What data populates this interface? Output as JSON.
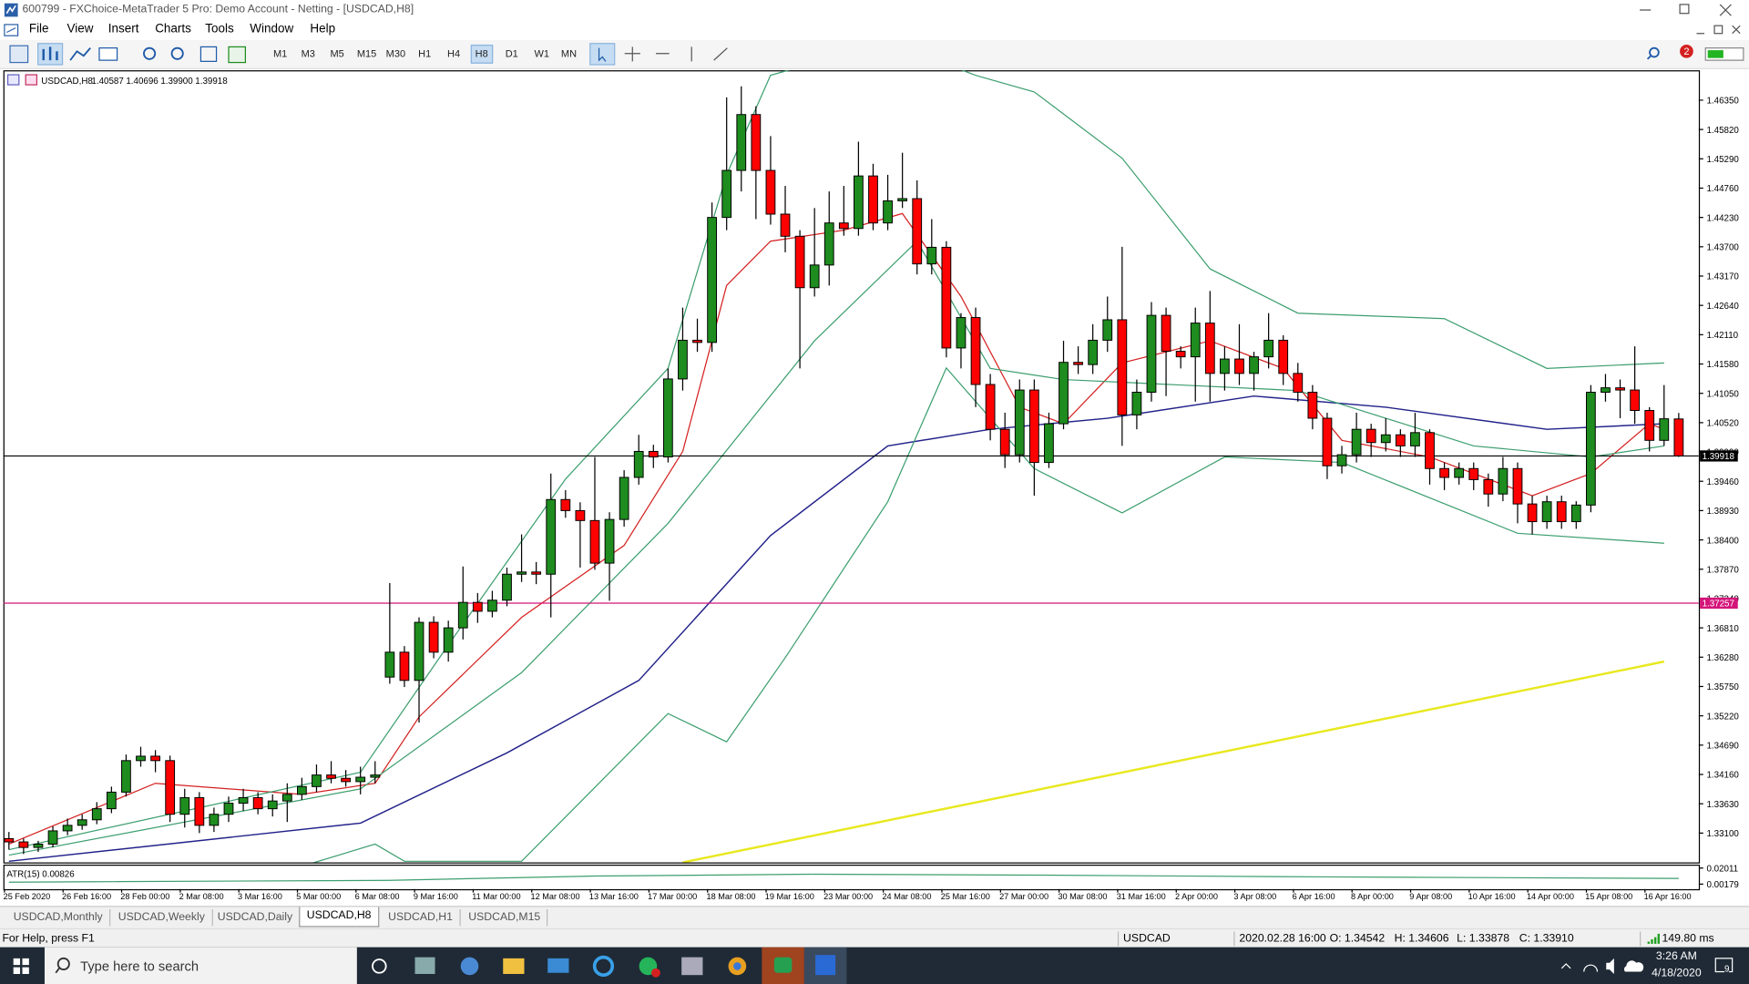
{
  "window": {
    "title": "600799 - FXChoice-MetaTrader 5 Pro: Demo Account - Netting - [USDCAD,H8]"
  },
  "menu": [
    "File",
    "View",
    "Insert",
    "Charts",
    "Tools",
    "Window",
    "Help"
  ],
  "timeframes": [
    "M1",
    "M3",
    "M5",
    "M15",
    "M30",
    "H1",
    "H4",
    "H8",
    "D1",
    "W1",
    "MN"
  ],
  "active_timeframe": "H8",
  "notification_badge": "2",
  "chart_header": {
    "symbol": "USDCAD,H8",
    "ohlc": [
      "1.40587",
      "1.40696",
      "1.39900",
      "1.39918"
    ]
  },
  "chart_data": {
    "type": "candlestick",
    "up_color": "#1e8c1e",
    "down_color": "#ff0000",
    "ylim": [
      1.3259,
      1.4685
    ],
    "yticks": [
      {
        "value": 1.4635,
        "label": "1.46350"
      },
      {
        "value": 1.4582,
        "label": "1.45820"
      },
      {
        "value": 1.4529,
        "label": "1.45290"
      },
      {
        "value": 1.4476,
        "label": "1.44760"
      },
      {
        "value": 1.4423,
        "label": "1.44230"
      },
      {
        "value": 1.437,
        "label": "1.43700"
      },
      {
        "value": 1.4317,
        "label": "1.43170"
      },
      {
        "value": 1.4264,
        "label": "1.42640"
      },
      {
        "value": 1.4211,
        "label": "1.42110"
      },
      {
        "value": 1.4158,
        "label": "1.41580"
      },
      {
        "value": 1.4105,
        "label": "1.41050"
      },
      {
        "value": 1.4052,
        "label": "1.40520"
      },
      {
        "value": 1.3999,
        "label": "1.39990"
      },
      {
        "value": 1.3946,
        "label": "1.39460"
      },
      {
        "value": 1.3893,
        "label": "1.38930"
      },
      {
        "value": 1.384,
        "label": "1.38400"
      },
      {
        "value": 1.3787,
        "label": "1.37870"
      },
      {
        "value": 1.3734,
        "label": "1.37340"
      },
      {
        "value": 1.3681,
        "label": "1.36810"
      },
      {
        "value": 1.3628,
        "label": "1.36280"
      },
      {
        "value": 1.3575,
        "label": "1.35750"
      },
      {
        "value": 1.3522,
        "label": "1.35220"
      },
      {
        "value": 1.3469,
        "label": "1.34690"
      },
      {
        "value": 1.3416,
        "label": "1.34160"
      },
      {
        "value": 1.3363,
        "label": "1.33630"
      },
      {
        "value": 1.331,
        "label": "1.33100"
      }
    ],
    "price_lines": [
      {
        "value": 1.39918,
        "label": "1.39918",
        "color": "#000000"
      },
      {
        "value": 1.37257,
        "label": "1.37257",
        "color": "#d4147a"
      }
    ],
    "candles": [
      [
        1.33,
        1.3312,
        1.328,
        1.3294
      ],
      [
        1.3294,
        1.33,
        1.3272,
        1.3284
      ],
      [
        1.3284,
        1.3296,
        1.3276,
        1.329
      ],
      [
        1.329,
        1.3322,
        1.3284,
        1.3314
      ],
      [
        1.3314,
        1.3336,
        1.3306,
        1.3324
      ],
      [
        1.3324,
        1.3344,
        1.3316,
        1.3334
      ],
      [
        1.3334,
        1.3366,
        1.3326,
        1.3354
      ],
      [
        1.3354,
        1.3394,
        1.3346,
        1.3384
      ],
      [
        1.3384,
        1.3452,
        1.3376,
        1.3441
      ],
      [
        1.3441,
        1.3466,
        1.343,
        1.3449
      ],
      [
        1.3449,
        1.346,
        1.342,
        1.3441
      ],
      [
        1.3441,
        1.345,
        1.333,
        1.3344
      ],
      [
        1.3344,
        1.339,
        1.332,
        1.3374
      ],
      [
        1.3374,
        1.3384,
        1.331,
        1.3324
      ],
      [
        1.3324,
        1.3356,
        1.3312,
        1.3344
      ],
      [
        1.3344,
        1.3376,
        1.333,
        1.3364
      ],
      [
        1.3364,
        1.339,
        1.335,
        1.3374
      ],
      [
        1.3374,
        1.3384,
        1.3344,
        1.3354
      ],
      [
        1.3354,
        1.338,
        1.334,
        1.3368
      ],
      [
        1.3368,
        1.34,
        1.333,
        1.338
      ],
      [
        1.338,
        1.341,
        1.337,
        1.3394
      ],
      [
        1.3394,
        1.3434,
        1.3384,
        1.3415
      ],
      [
        1.3415,
        1.344,
        1.34,
        1.3409
      ],
      [
        1.3409,
        1.3424,
        1.3394,
        1.3403
      ],
      [
        1.3403,
        1.343,
        1.338,
        1.3411
      ],
      [
        1.3411,
        1.344,
        1.34,
        1.3415
      ],
      [
        1.3592,
        1.3762,
        1.358,
        1.3637
      ],
      [
        1.3637,
        1.3648,
        1.3574,
        1.3586
      ],
      [
        1.3586,
        1.37,
        1.351,
        1.3691
      ],
      [
        1.3691,
        1.3702,
        1.3626,
        1.3637
      ],
      [
        1.3637,
        1.3694,
        1.362,
        1.3681
      ],
      [
        1.3681,
        1.3792,
        1.366,
        1.3727
      ],
      [
        1.3727,
        1.3744,
        1.369,
        1.3711
      ],
      [
        1.3711,
        1.3748,
        1.37,
        1.3731
      ],
      [
        1.3731,
        1.379,
        1.372,
        1.3778
      ],
      [
        1.3778,
        1.385,
        1.3764,
        1.3782
      ],
      [
        1.3782,
        1.38,
        1.376,
        1.3778
      ],
      [
        1.3778,
        1.396,
        1.37,
        1.3913
      ],
      [
        1.3913,
        1.393,
        1.388,
        1.3893
      ],
      [
        1.3893,
        1.3908,
        1.379,
        1.3875
      ],
      [
        1.3875,
        1.399,
        1.3786,
        1.3798
      ],
      [
        1.3798,
        1.389,
        1.373,
        1.3877
      ],
      [
        1.3877,
        1.3966,
        1.3864,
        1.3953
      ],
      [
        1.3953,
        1.403,
        1.394,
        1.4
      ],
      [
        1.4,
        1.4012,
        1.397,
        1.399
      ],
      [
        1.399,
        1.415,
        1.398,
        1.4131
      ],
      [
        1.4131,
        1.426,
        1.411,
        1.4201
      ],
      [
        1.4201,
        1.424,
        1.418,
        1.4197
      ],
      [
        1.4197,
        1.445,
        1.418,
        1.4423
      ],
      [
        1.4423,
        1.464,
        1.44,
        1.4508
      ],
      [
        1.4508,
        1.466,
        1.447,
        1.4609
      ],
      [
        1.4609,
        1.4624,
        1.442,
        1.4508
      ],
      [
        1.4508,
        1.457,
        1.441,
        1.4429
      ],
      [
        1.4429,
        1.448,
        1.436,
        1.4389
      ],
      [
        1.4389,
        1.44,
        1.415,
        1.4296
      ],
      [
        1.4296,
        1.444,
        1.428,
        1.4337
      ],
      [
        1.4337,
        1.447,
        1.43,
        1.4413
      ],
      [
        1.4413,
        1.448,
        1.439,
        1.4403
      ],
      [
        1.4403,
        1.456,
        1.439,
        1.4498
      ],
      [
        1.4498,
        1.452,
        1.44,
        1.4413
      ],
      [
        1.4413,
        1.45,
        1.44,
        1.4453
      ],
      [
        1.4453,
        1.454,
        1.444,
        1.4457
      ],
      [
        1.4457,
        1.449,
        1.432,
        1.4339
      ],
      [
        1.4339,
        1.442,
        1.432,
        1.4369
      ],
      [
        1.4369,
        1.438,
        1.417,
        1.4187
      ],
      [
        1.4187,
        1.425,
        1.415,
        1.4242
      ],
      [
        1.4242,
        1.426,
        1.408,
        1.4121
      ],
      [
        1.4121,
        1.414,
        1.402,
        1.404
      ],
      [
        1.404,
        1.407,
        1.397,
        1.3994
      ],
      [
        1.3994,
        1.413,
        1.398,
        1.4111
      ],
      [
        1.4111,
        1.413,
        1.392,
        1.398
      ],
      [
        1.398,
        1.407,
        1.397,
        1.405
      ],
      [
        1.405,
        1.42,
        1.404,
        1.4161
      ],
      [
        1.4161,
        1.419,
        1.414,
        1.4157
      ],
      [
        1.4157,
        1.423,
        1.414,
        1.4201
      ],
      [
        1.4201,
        1.428,
        1.418,
        1.4238
      ],
      [
        1.4238,
        1.437,
        1.401,
        1.4066
      ],
      [
        1.4066,
        1.413,
        1.404,
        1.4107
      ],
      [
        1.4107,
        1.427,
        1.409,
        1.4246
      ],
      [
        1.4246,
        1.426,
        1.41,
        1.4181
      ],
      [
        1.4181,
        1.419,
        1.415,
        1.4171
      ],
      [
        1.4171,
        1.426,
        1.409,
        1.4232
      ],
      [
        1.4232,
        1.429,
        1.409,
        1.4141
      ],
      [
        1.4141,
        1.419,
        1.411,
        1.4167
      ],
      [
        1.4167,
        1.423,
        1.412,
        1.4141
      ],
      [
        1.4141,
        1.418,
        1.411,
        1.4171
      ],
      [
        1.4171,
        1.425,
        1.415,
        1.4201
      ],
      [
        1.4201,
        1.421,
        1.412,
        1.4141
      ],
      [
        1.4141,
        1.416,
        1.409,
        1.4107
      ],
      [
        1.4107,
        1.412,
        1.404,
        1.406
      ],
      [
        1.406,
        1.407,
        1.395,
        1.3974
      ],
      [
        1.3974,
        1.401,
        1.396,
        1.3994
      ],
      [
        1.3994,
        1.407,
        1.398,
        1.404
      ],
      [
        1.404,
        1.405,
        1.399,
        1.4016
      ],
      [
        1.4016,
        1.406,
        1.4,
        1.403
      ],
      [
        1.403,
        1.404,
        1.399,
        1.401
      ],
      [
        1.401,
        1.407,
        1.399,
        1.4034
      ],
      [
        1.4034,
        1.404,
        1.394,
        1.3969
      ],
      [
        1.3969,
        1.398,
        1.393,
        1.3953
      ],
      [
        1.3953,
        1.398,
        1.394,
        1.3969
      ],
      [
        1.3969,
        1.398,
        1.393,
        1.3949
      ],
      [
        1.3949,
        1.396,
        1.39,
        1.3923
      ],
      [
        1.3923,
        1.399,
        1.391,
        1.3969
      ],
      [
        1.3969,
        1.398,
        1.387,
        1.3905
      ],
      [
        1.3905,
        1.392,
        1.385,
        1.3873
      ],
      [
        1.3873,
        1.392,
        1.386,
        1.3909
      ],
      [
        1.3909,
        1.392,
        1.386,
        1.3873
      ],
      [
        1.3873,
        1.391,
        1.386,
        1.3903
      ],
      [
        1.3903,
        1.412,
        1.389,
        1.4107
      ],
      [
        1.4107,
        1.414,
        1.409,
        1.4115
      ],
      [
        1.4115,
        1.413,
        1.406,
        1.4111
      ],
      [
        1.4111,
        1.419,
        1.405,
        1.4074
      ],
      [
        1.4074,
        1.408,
        1.4,
        1.402
      ],
      [
        1.402,
        1.412,
        1.401,
        1.4059
      ],
      [
        1.40587,
        1.40696,
        1.399,
        1.39918
      ]
    ],
    "indicators": [
      {
        "color": "#e8e820",
        "width": 2,
        "x": [
          46,
          113
        ],
        "values": [
          1.3257,
          1.362
        ]
      },
      {
        "color": "#22228a",
        "width": 1.2,
        "x": [
          0,
          24,
          34,
          43,
          52,
          60,
          67,
          75,
          85,
          94,
          105,
          113
        ],
        "values": [
          1.3259,
          1.3328,
          1.3455,
          1.3586,
          1.3848,
          1.401,
          1.404,
          1.406,
          1.41,
          1.408,
          1.404,
          1.405
        ]
      },
      {
        "color": "#d42020",
        "width": 1,
        "x": [
          0,
          10,
          20,
          25,
          28,
          35,
          42,
          46,
          49,
          52,
          57,
          61,
          65,
          69,
          72,
          76,
          82,
          87,
          91,
          97,
          104,
          108,
          112,
          113
        ],
        "values": [
          1.329,
          1.34,
          1.338,
          1.34,
          1.352,
          1.37,
          1.383,
          1.4,
          1.43,
          1.438,
          1.44,
          1.443,
          1.428,
          1.408,
          1.405,
          1.416,
          1.42,
          1.415,
          1.402,
          1.399,
          1.392,
          1.396,
          1.405,
          1.404
        ]
      },
      {
        "color": "#3c9e6e",
        "width": 1,
        "x": [
          0,
          24,
          30,
          38,
          45,
          49,
          52,
          60,
          66,
          70,
          76,
          82,
          88,
          98,
          105,
          113
        ],
        "values": [
          1.328,
          1.342,
          1.365,
          1.395,
          1.415,
          1.45,
          1.468,
          1.474,
          1.468,
          1.465,
          1.453,
          1.433,
          1.425,
          1.424,
          1.415,
          1.416
        ]
      },
      {
        "color": "#3c9e6e",
        "width": 1,
        "x": [
          0,
          24,
          35,
          45,
          55,
          62,
          67,
          72,
          80,
          88,
          100,
          108,
          113
        ],
        "values": [
          1.327,
          1.339,
          1.36,
          1.387,
          1.42,
          1.438,
          1.415,
          1.413,
          1.412,
          1.411,
          1.401,
          1.399,
          1.401
        ]
      },
      {
        "color": "#3c9e6e",
        "width": 1,
        "x": [
          0,
          20,
          25,
          27,
          35,
          45,
          49,
          53,
          60,
          64,
          70,
          76,
          83,
          91,
          103,
          113
        ],
        "values": [
          1.324,
          1.325,
          1.329,
          1.3259,
          1.3259,
          1.3526,
          1.3475,
          1.3627,
          1.3909,
          1.4151,
          1.3969,
          1.3889,
          1.399,
          1.398,
          1.3852,
          1.3834
        ]
      }
    ],
    "date_labels": [
      "25 Feb 2020",
      "26 Feb 16:00",
      "28 Feb 00:00",
      "2 Mar 08:00",
      "3 Mar 16:00",
      "5 Mar 00:00",
      "6 Mar 08:00",
      "9 Mar 16:00",
      "11 Mar 00:00",
      "12 Mar 08:00",
      "13 Mar 16:00",
      "17 Mar 00:00",
      "18 Mar 08:00",
      "19 Mar 16:00",
      "23 Mar 00:00",
      "24 Mar 08:00",
      "25 Mar 16:00",
      "27 Mar 00:00",
      "30 Mar 08:00",
      "31 Mar 16:00",
      "2 Apr 00:00",
      "3 Apr 08:00",
      "6 Apr 16:00",
      "8 Apr 00:00",
      "9 Apr 08:00",
      "10 Apr 16:00",
      "14 Apr 00:00",
      "15 Apr 08:00",
      "16 Apr 16:00"
    ],
    "atr": {
      "title": "ATR(15) 0.00826",
      "color": "#3c9e6e",
      "ylim": [
        -0.004,
        0.024
      ],
      "yticks": [
        {
          "value": 0.02011,
          "label": "0.02011"
        },
        {
          "value": 0.00179,
          "label": "0.00179"
        }
      ],
      "x": [
        0,
        26,
        40,
        55,
        70,
        90,
        114
      ],
      "values": [
        0.004,
        0.006,
        0.011,
        0.013,
        0.012,
        0.01,
        0.00826
      ]
    }
  },
  "tabs": [
    "USDCAD,Monthly",
    "USDCAD,Weekly",
    "USDCAD,Daily",
    "USDCAD,H8",
    "USDCAD,H1",
    "USDCAD,M15"
  ],
  "active_tab": "USDCAD,H8",
  "status": {
    "help": "For Help, press F1",
    "symbol": "USDCAD",
    "time": "2020.02.28 16:00",
    "open": "O: 1.34542",
    "high": "H: 1.34606",
    "low": "L: 1.33878",
    "close": "C: 1.33910",
    "ping": "149.80 ms"
  },
  "taskbar": {
    "search": "Type here to search",
    "time": "3:26 AM",
    "date": "4/18/2020",
    "notifications": "9"
  }
}
